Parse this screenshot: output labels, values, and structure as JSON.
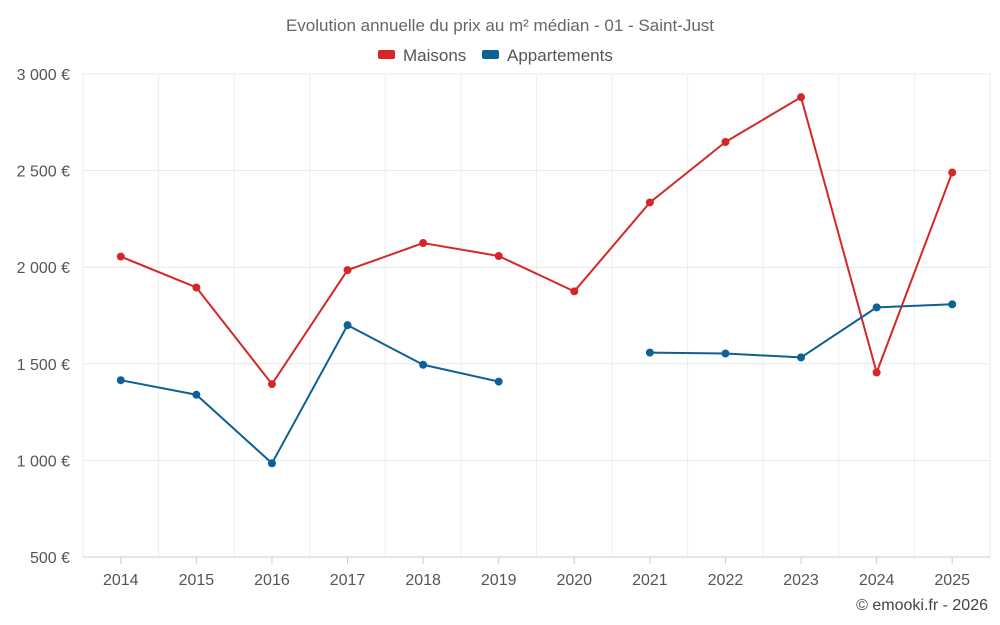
{
  "chart_data": {
    "type": "line",
    "title": "Evolution annuelle du prix au m² médian - 01 - Saint-Just",
    "categories": [
      "2014",
      "2015",
      "2016",
      "2017",
      "2018",
      "2019",
      "2020",
      "2021",
      "2022",
      "2023",
      "2024",
      "2025"
    ],
    "y_ticks": [
      "500 €",
      "1 000 €",
      "1 500 €",
      "2 000 €",
      "2 500 €",
      "3 000 €"
    ],
    "ylim": [
      500,
      3000
    ],
    "grid": true,
    "legend_position": "top-center",
    "series": [
      {
        "name": "Maisons",
        "color": "#d62728",
        "values": [
          2055,
          1895,
          1395,
          1985,
          2125,
          2058,
          1875,
          2335,
          2648,
          2880,
          1455,
          2490
        ]
      },
      {
        "name": "Appartements",
        "color": "#0d6194",
        "values": [
          1415,
          1340,
          985,
          1700,
          1495,
          1408,
          null,
          1558,
          1553,
          1533,
          1792,
          1808
        ]
      }
    ]
  },
  "credit": "© emooki.fr - 2026"
}
